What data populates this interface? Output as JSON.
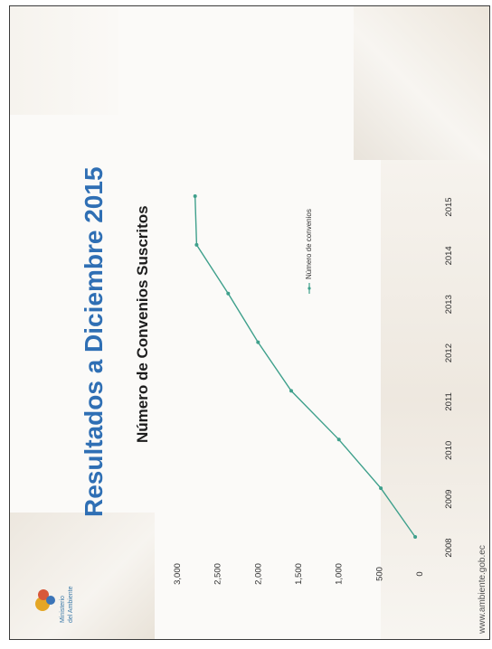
{
  "slide": {
    "title": "Resultados a Diciembre 2015",
    "website": "www.ambiente.gob.ec",
    "logo": {
      "line1": "Ministerio",
      "line2": "del Ambiente"
    }
  },
  "chart_data": {
    "type": "line",
    "title": "Número de Convenios Suscritos",
    "xlabel": "",
    "ylabel": "",
    "x": [
      "2008",
      "2009",
      "2010",
      "2011",
      "2012",
      "2013",
      "2014",
      "2015"
    ],
    "yticks": [
      "0",
      "500",
      "1,000",
      "1,500",
      "2,000",
      "2,500",
      "3,000"
    ],
    "ylim": [
      0,
      3000
    ],
    "grid": false,
    "legend": "right",
    "series": [
      {
        "name": "Número de convenios",
        "values": [
          55,
          480,
          1000,
          1590,
          2000,
          2370,
          2760,
          2780
        ]
      }
    ],
    "line_color": "#3fa08c"
  }
}
